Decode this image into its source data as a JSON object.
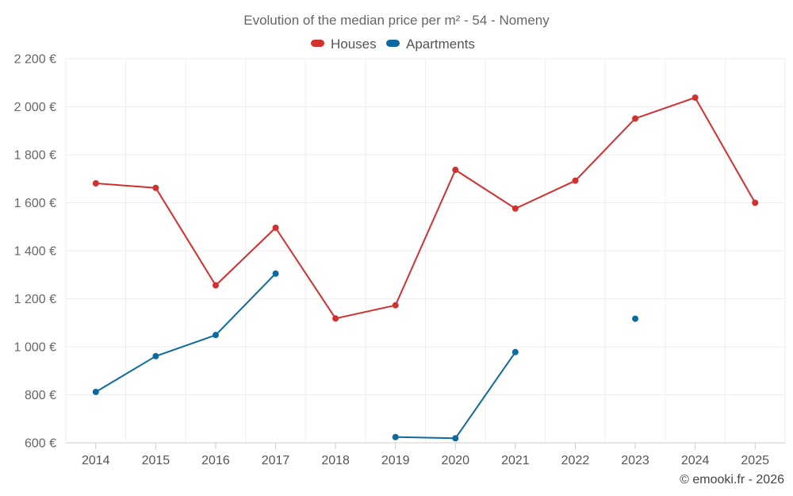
{
  "chart_data": {
    "type": "line",
    "title": "Evolution of the median price per m² - 54 - Nomeny",
    "categories": [
      "2014",
      "2015",
      "2016",
      "2017",
      "2018",
      "2019",
      "2020",
      "2021",
      "2022",
      "2023",
      "2024",
      "2025"
    ],
    "yticks": [
      "600 €",
      "800 €",
      "1 000 €",
      "1 200 €",
      "1 400 €",
      "1 600 €",
      "1 800 €",
      "2 000 €",
      "2 200 €"
    ],
    "ylim": [
      600,
      2200
    ],
    "ytick_step": 200,
    "grid": true,
    "legend_position": "top-center",
    "series": [
      {
        "name": "Houses",
        "color": "#d32f2f",
        "values": [
          1681,
          1662,
          1256,
          1496,
          1118,
          1173,
          1737,
          1576,
          1692,
          1951,
          2038,
          1600
        ]
      },
      {
        "name": "Apartments",
        "color": "#0d6aa0",
        "values": [
          812,
          961,
          1049,
          1305,
          null,
          624,
          619,
          978,
          null,
          1117,
          null,
          null
        ]
      }
    ],
    "credit": "© emooki.fr - 2026"
  }
}
